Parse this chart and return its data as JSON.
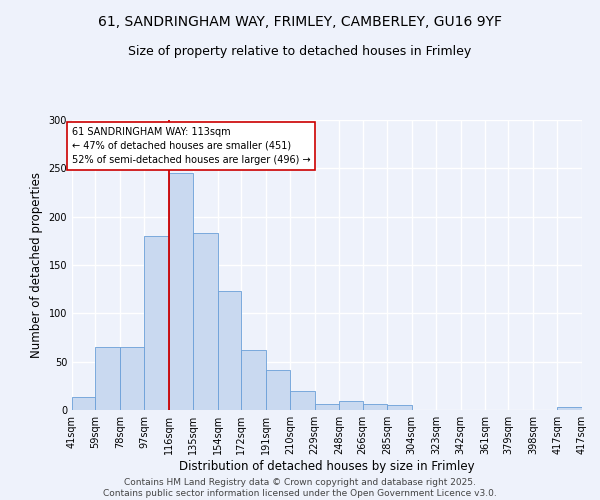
{
  "title1": "61, SANDRINGHAM WAY, FRIMLEY, CAMBERLEY, GU16 9YF",
  "title2": "Size of property relative to detached houses in Frimley",
  "xlabel": "Distribution of detached houses by size in Frimley",
  "ylabel": "Number of detached properties",
  "bin_labels": [
    "41sqm",
    "59sqm",
    "78sqm",
    "97sqm",
    "116sqm",
    "135sqm",
    "154sqm",
    "172sqm",
    "191sqm",
    "210sqm",
    "229sqm",
    "248sqm",
    "266sqm",
    "285sqm",
    "304sqm",
    "323sqm",
    "342sqm",
    "361sqm",
    "379sqm",
    "398sqm",
    "417sqm"
  ],
  "bin_edges": [
    41,
    59,
    78,
    97,
    116,
    135,
    154,
    172,
    191,
    210,
    229,
    248,
    266,
    285,
    304,
    323,
    342,
    361,
    379,
    398,
    417
  ],
  "bar_heights": [
    13,
    65,
    65,
    180,
    245,
    183,
    123,
    62,
    41,
    20,
    6,
    9,
    6,
    5,
    0,
    0,
    0,
    0,
    0,
    0,
    3
  ],
  "bar_color": "#c9d9f0",
  "bar_edge_color": "#6a9fd8",
  "property_line_x": 116,
  "property_line_color": "#cc0000",
  "annotation_text": "61 SANDRINGHAM WAY: 113sqm\n← 47% of detached houses are smaller (451)\n52% of semi-detached houses are larger (496) →",
  "annotation_box_color": "#ffffff",
  "annotation_box_edge": "#cc0000",
  "ylim": [
    0,
    300
  ],
  "yticks": [
    0,
    50,
    100,
    150,
    200,
    250,
    300
  ],
  "footer_text": "Contains HM Land Registry data © Crown copyright and database right 2025.\nContains public sector information licensed under the Open Government Licence v3.0.",
  "bg_color": "#eef2fb",
  "grid_color": "#ffffff",
  "title_fontsize": 10,
  "subtitle_fontsize": 9,
  "axis_label_fontsize": 8.5,
  "tick_fontsize": 7,
  "footer_fontsize": 6.5
}
